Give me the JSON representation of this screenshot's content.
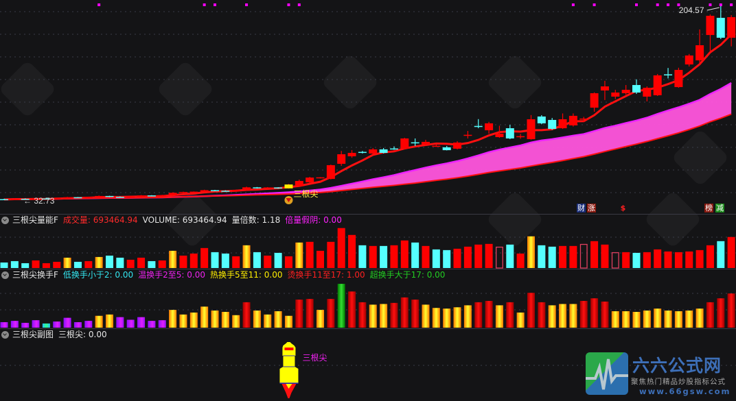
{
  "main": {
    "low_label": "← 32.73",
    "high_label": "204.57",
    "signal_label": "三根尖",
    "badges": [
      {
        "text": "财",
        "color": "#1a2e7a"
      },
      {
        "text": "涨",
        "color": "#8a1a10"
      },
      {
        "text": "$",
        "color": "transparent"
      },
      {
        "text": "榜",
        "color": "#8a1a10"
      },
      {
        "text": "减",
        "color": "#1a8a1a"
      }
    ]
  },
  "volume_pane": {
    "title": "三根尖量能F",
    "items": [
      {
        "text": "成交量: 693464.94",
        "color": "#ff2a2a"
      },
      {
        "text": "VOLUME: 693464.94",
        "color": "#e6e6e6"
      },
      {
        "text": "量倍数: 1.18",
        "color": "#e6e6e6"
      },
      {
        "text": "倍量假阴: 0.00",
        "color": "#ff22ff"
      }
    ]
  },
  "turnover_pane": {
    "title": "三根尖换手F",
    "items": [
      {
        "text": "低换手小于2: 0.00",
        "color": "#33e6f0"
      },
      {
        "text": "温换手2至5: 0.00",
        "color": "#ee22ee"
      },
      {
        "text": "热换手5至11: 0.00",
        "color": "#ffee00"
      },
      {
        "text": "烫换手11至17: 1.00",
        "color": "#ff2020"
      },
      {
        "text": "超换手大于17: 0.00",
        "color": "#22cc22"
      }
    ]
  },
  "sub_pane": {
    "title": "三根尖副图",
    "value": "三根尖: 0.00",
    "rocket_label": "三根尖"
  },
  "logo": {
    "title": "六六公式网",
    "subtitle": "聚焦热门精品炒股指标公式",
    "url": "www.66gsw.com"
  },
  "colors": {
    "up": "#ff0000",
    "down": "#55ffff",
    "ma_short": "#ff1010",
    "band_fill": "#ff55dd",
    "band_edge": "#ee22ff"
  },
  "chart_data": {
    "type": "candlestick",
    "price_range": [
      27.9,
      208.8
    ],
    "grid": true,
    "moving_averages": [
      "MA5",
      "MA20",
      "MA40"
    ],
    "low_marker_index": 0,
    "high_marker_index": 68,
    "signal_index": 27,
    "top_signal_indices": [
      9,
      19,
      20,
      23,
      27,
      28,
      54,
      56,
      60,
      62,
      63,
      64,
      67,
      68,
      69
    ],
    "candles_ohlc": [
      [
        33.6,
        34.0,
        32.73,
        33.3
      ],
      [
        33.3,
        34.2,
        33.0,
        33.9
      ],
      [
        33.9,
        34.3,
        33.4,
        33.6
      ],
      [
        33.6,
        34.5,
        33.3,
        34.2
      ],
      [
        34.2,
        34.6,
        33.8,
        34.0
      ],
      [
        34.0,
        34.9,
        33.8,
        34.6
      ],
      [
        34.6,
        35.6,
        34.2,
        35.3
      ],
      [
        35.3,
        35.5,
        34.6,
        34.8
      ],
      [
        34.8,
        35.8,
        34.6,
        35.5
      ],
      [
        35.5,
        36.8,
        35.2,
        36.4
      ],
      [
        36.4,
        36.6,
        35.3,
        35.6
      ],
      [
        35.6,
        36.0,
        34.9,
        35.2
      ],
      [
        35.2,
        36.2,
        35.0,
        35.9
      ],
      [
        35.9,
        37.2,
        35.6,
        36.9
      ],
      [
        36.9,
        37.1,
        36.0,
        36.4
      ],
      [
        36.4,
        37.4,
        36.2,
        37.1
      ],
      [
        37.1,
        39.6,
        36.9,
        39.2
      ],
      [
        39.2,
        40.2,
        38.8,
        39.9
      ],
      [
        39.9,
        40.4,
        39.5,
        40.2
      ],
      [
        40.2,
        41.9,
        39.9,
        41.5
      ],
      [
        41.5,
        41.8,
        40.6,
        41.0
      ],
      [
        41.0,
        41.4,
        40.2,
        40.6
      ],
      [
        40.6,
        42.0,
        40.4,
        41.7
      ],
      [
        41.7,
        44.6,
        41.4,
        44.0
      ],
      [
        44.0,
        44.3,
        42.9,
        43.2
      ],
      [
        43.2,
        44.2,
        42.8,
        43.9
      ],
      [
        43.9,
        44.1,
        42.8,
        43.1
      ],
      [
        43.1,
        47.0,
        42.9,
        46.5
      ],
      [
        45.0,
        50.8,
        44.6,
        49.6
      ],
      [
        48.4,
        53.2,
        48.0,
        52.6
      ],
      [
        52.4,
        53.0,
        51.8,
        52.8
      ],
      [
        51.4,
        64.0,
        51.0,
        63.5
      ],
      [
        64.7,
        76.0,
        62.9,
        73.1
      ],
      [
        71.3,
        76.8,
        70.0,
        74.3
      ],
      [
        75.2,
        76.0,
        73.8,
        74.6
      ],
      [
        73.7,
        78.6,
        73.2,
        77.4
      ],
      [
        77.4,
        78.6,
        73.8,
        74.3
      ],
      [
        78.2,
        80.0,
        77.0,
        77.8
      ],
      [
        78.0,
        87.6,
        77.6,
        87.0
      ],
      [
        83.6,
        87.0,
        80.4,
        83.2
      ],
      [
        81.6,
        85.8,
        80.8,
        84.0
      ],
      [
        80.3,
        81.8,
        79.6,
        80.6
      ],
      [
        79.2,
        80.4,
        76.5,
        76.7
      ],
      [
        78.0,
        84.6,
        77.4,
        83.4
      ],
      [
        89.8,
        93.6,
        87.0,
        90.2
      ],
      [
        98.0,
        104.0,
        96.0,
        97.8
      ],
      [
        94.2,
        101.6,
        91.2,
        100.3
      ],
      [
        88.2,
        98.2,
        87.6,
        91.2
      ],
      [
        96.0,
        99.0,
        86.4,
        87.0
      ],
      [
        88.8,
        91.0,
        86.8,
        89.0
      ],
      [
        86.4,
        107.6,
        86.0,
        103.9
      ],
      [
        106.3,
        107.5,
        99.5,
        100.3
      ],
      [
        103.3,
        105.0,
        94.6,
        95.4
      ],
      [
        96.0,
        109.0,
        95.4,
        103.9
      ],
      [
        98.5,
        109.0,
        97.5,
        106.9
      ],
      [
        104.2,
        106.0,
        101.5,
        104.5
      ],
      [
        114.1,
        127.5,
        110.5,
        126.8
      ],
      [
        129.2,
        137.7,
        120.8,
        132.8
      ],
      [
        123.8,
        129.8,
        121.6,
        127.4
      ],
      [
        126.8,
        134.0,
        125.5,
        129.8
      ],
      [
        134.0,
        139.0,
        126.2,
        127.4
      ],
      [
        123.8,
        132.8,
        119.6,
        131.6
      ],
      [
        125.0,
        143.7,
        124.4,
        142.5
      ],
      [
        143.4,
        149.0,
        139.8,
        142.8
      ],
      [
        132.2,
        149.2,
        131.6,
        147.3
      ],
      [
        152.1,
        161.3,
        150.3,
        160.0
      ],
      [
        155.7,
        182.9,
        153.3,
        169.0
      ],
      [
        178.0,
        196.1,
        163.0,
        194.9
      ],
      [
        193.1,
        204.57,
        174.4,
        175.6
      ],
      [
        175.6,
        195.5,
        168.0,
        193.7
      ]
    ],
    "volume_range": [
      0,
      950000
    ],
    "volumes": [
      123200,
      154000,
      107800,
      169400,
      107800,
      138600,
      231000,
      138600,
      154000,
      246400,
      277200,
      231000,
      184800,
      231000,
      154000,
      169400,
      385000,
      277200,
      323400,
      446600,
      354200,
      323400,
      261800,
      508200,
      354200,
      277200,
      338800,
      261800,
      569800,
      585200,
      385000,
      585200,
      893200,
      739200,
      508200,
      492800,
      492800,
      508200,
      616000,
      569800,
      492800,
      415800,
      400400,
      431200,
      477400,
      523600,
      539000,
      477400,
      523600,
      323400,
      708400,
      508200,
      477400,
      492800,
      492800,
      539000,
      600600,
      523600,
      354200,
      354200,
      338800,
      354200,
      415800,
      369600,
      354200,
      369600,
      400400,
      508200,
      600600,
      693465
    ],
    "volume_styles": [
      "down",
      "down",
      "down",
      "up",
      "up",
      "up",
      "gold",
      "down",
      "up",
      "gold",
      "down",
      "down",
      "up",
      "up",
      "down",
      "up",
      "gold",
      "up",
      "up",
      "up",
      "down",
      "down",
      "up",
      "gold",
      "down",
      "up",
      "down",
      "up",
      "gold",
      "up",
      "up",
      "up",
      "up",
      "up",
      "down",
      "up",
      "down",
      "up",
      "up",
      "down",
      "up",
      "down",
      "down",
      "up",
      "up",
      "up",
      "up",
      "hollow",
      "down",
      "up",
      "gold",
      "down",
      "down",
      "up",
      "up",
      "hollow",
      "up",
      "up",
      "hollow",
      "up",
      "down",
      "up",
      "up",
      "up",
      "up",
      "up",
      "up",
      "up",
      "down",
      "up"
    ],
    "turnover_range": [
      0,
      21.9
    ],
    "turnover_thresholds": [
      2,
      5,
      11,
      17
    ],
    "turnover": [
      2.5,
      3.1,
      2.2,
      3.4,
      1.9,
      2.8,
      4.5,
      2.5,
      3.1,
      5.4,
      6.0,
      4.8,
      3.6,
      4.8,
      3.1,
      3.4,
      8.1,
      6.0,
      6.9,
      9.6,
      7.8,
      7.2,
      5.7,
      11.6,
      7.8,
      6.0,
      7.5,
      5.4,
      12.8,
      13.1,
      8.1,
      13.1,
      20.0,
      16.5,
      11.6,
      10.5,
      10.8,
      11.3,
      13.8,
      12.8,
      10.5,
      9.0,
      8.7,
      9.3,
      10.2,
      11.6,
      12.2,
      10.2,
      11.6,
      6.9,
      15.9,
      11.6,
      10.2,
      10.8,
      10.8,
      12.2,
      13.4,
      11.9,
      7.5,
      7.5,
      7.2,
      7.8,
      8.7,
      7.8,
      7.5,
      7.8,
      8.7,
      11.6,
      13.4,
      15.6
    ],
    "sub_signal_index": 27
  }
}
